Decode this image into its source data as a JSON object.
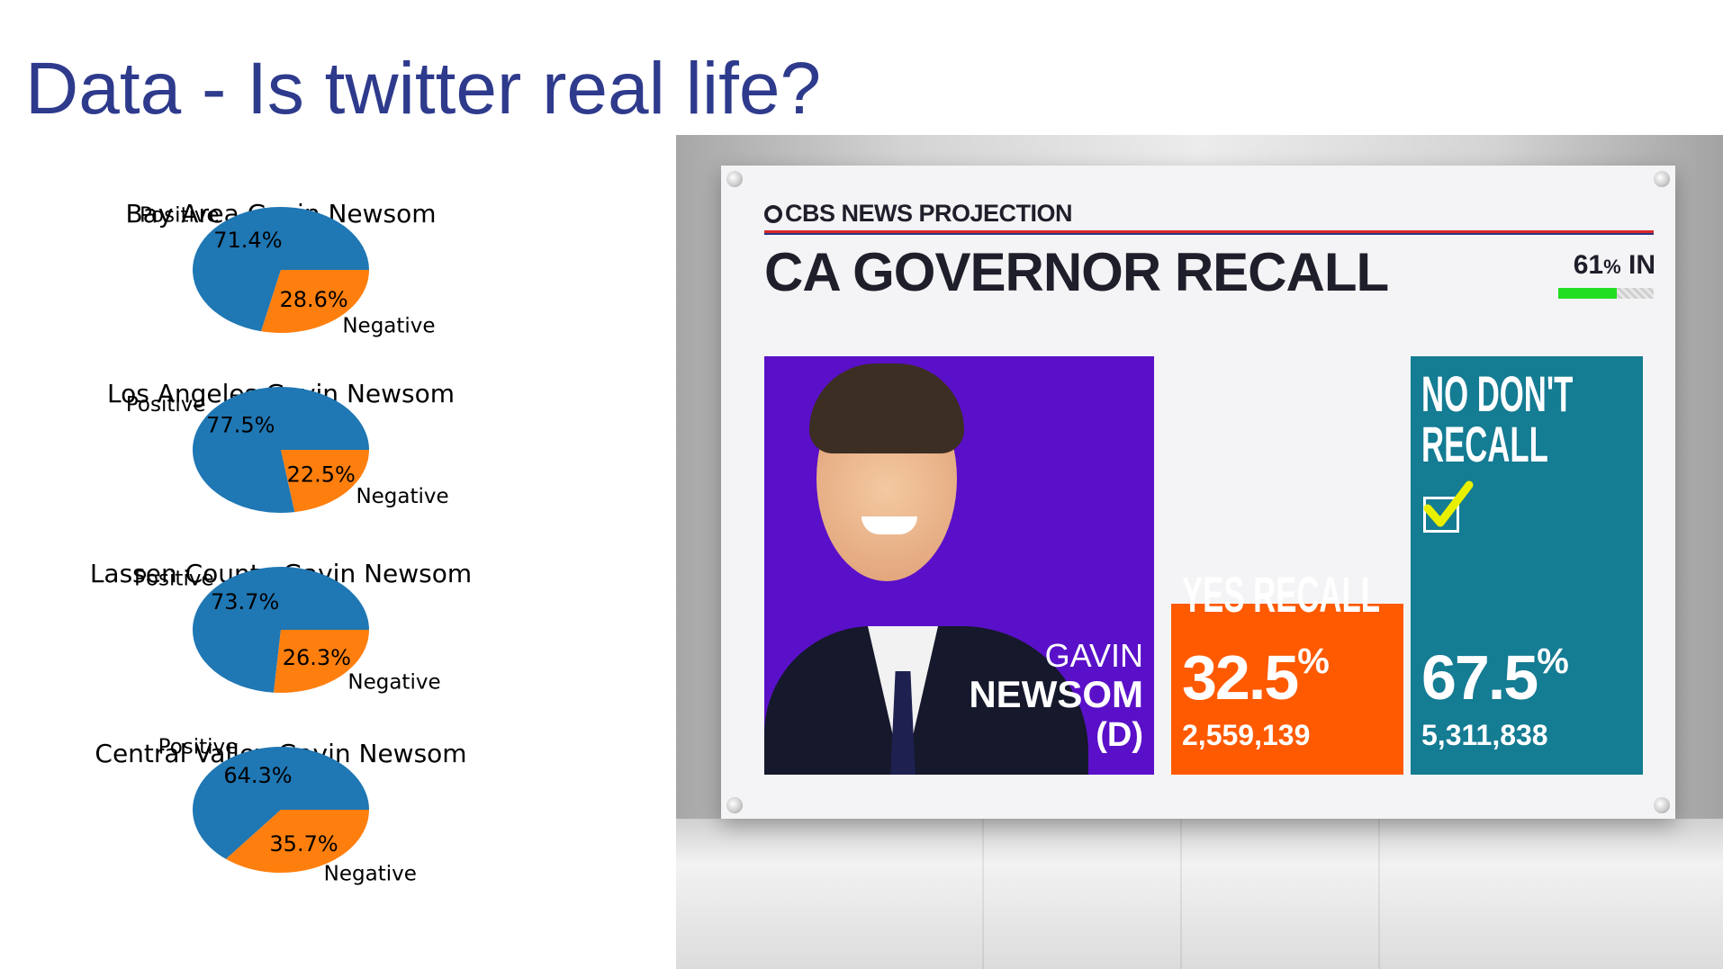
{
  "slide": {
    "title": "Data - Is twitter real life?"
  },
  "chart_data": [
    {
      "type": "pie",
      "title": "Bay Area Gavin Newsom",
      "labels": [
        "Positive",
        "Negative"
      ],
      "values": [
        71.4,
        28.6
      ],
      "autopct": [
        "71.4%",
        "28.6%"
      ],
      "colors": [
        "#1f77b4",
        "#ff7f0e"
      ]
    },
    {
      "type": "pie",
      "title": "Los Angeles Gavin Newsom",
      "labels": [
        "Positive",
        "Negative"
      ],
      "values": [
        77.5,
        22.5
      ],
      "autopct": [
        "77.5%",
        "22.5%"
      ],
      "colors": [
        "#1f77b4",
        "#ff7f0e"
      ]
    },
    {
      "type": "pie",
      "title": "Lassen County Gavin Newsom",
      "labels": [
        "Positive",
        "Negative"
      ],
      "values": [
        73.7,
        26.3
      ],
      "autopct": [
        "73.7%",
        "26.3%"
      ],
      "colors": [
        "#1f77b4",
        "#ff7f0e"
      ]
    },
    {
      "type": "pie",
      "title": "Central Valley Gavin Newsom",
      "labels": [
        "Positive",
        "Negative"
      ],
      "values": [
        64.3,
        35.7
      ],
      "autopct": [
        "64.3%",
        "35.7%"
      ],
      "colors": [
        "#1f77b4",
        "#ff7f0e"
      ]
    }
  ],
  "broadcast": {
    "brand": "CBS NEWS PROJECTION",
    "race_title": "CA GOVERNOR RECALL",
    "reporting": {
      "value": "61",
      "sign": "%",
      "suffix": " IN",
      "fraction": 0.61
    },
    "candidate": {
      "first_name": "GAVIN",
      "last_name": "NEWSOM",
      "party": "(D)"
    },
    "results": [
      {
        "label_lines": [
          "YES RECALL"
        ],
        "pct": "32.5",
        "votes": "2,559,139",
        "color": "#ff5a00",
        "share": 0.325,
        "winner": false
      },
      {
        "label_lines": [
          "NO DON'T",
          "RECALL"
        ],
        "pct": "67.5",
        "votes": "5,311,838",
        "color": "#147c93",
        "share": 0.675,
        "winner": true
      }
    ],
    "colors": {
      "candidate_bg": "#5a10c8",
      "checkmark": "#e8f000",
      "progress": "#22dd22"
    }
  }
}
